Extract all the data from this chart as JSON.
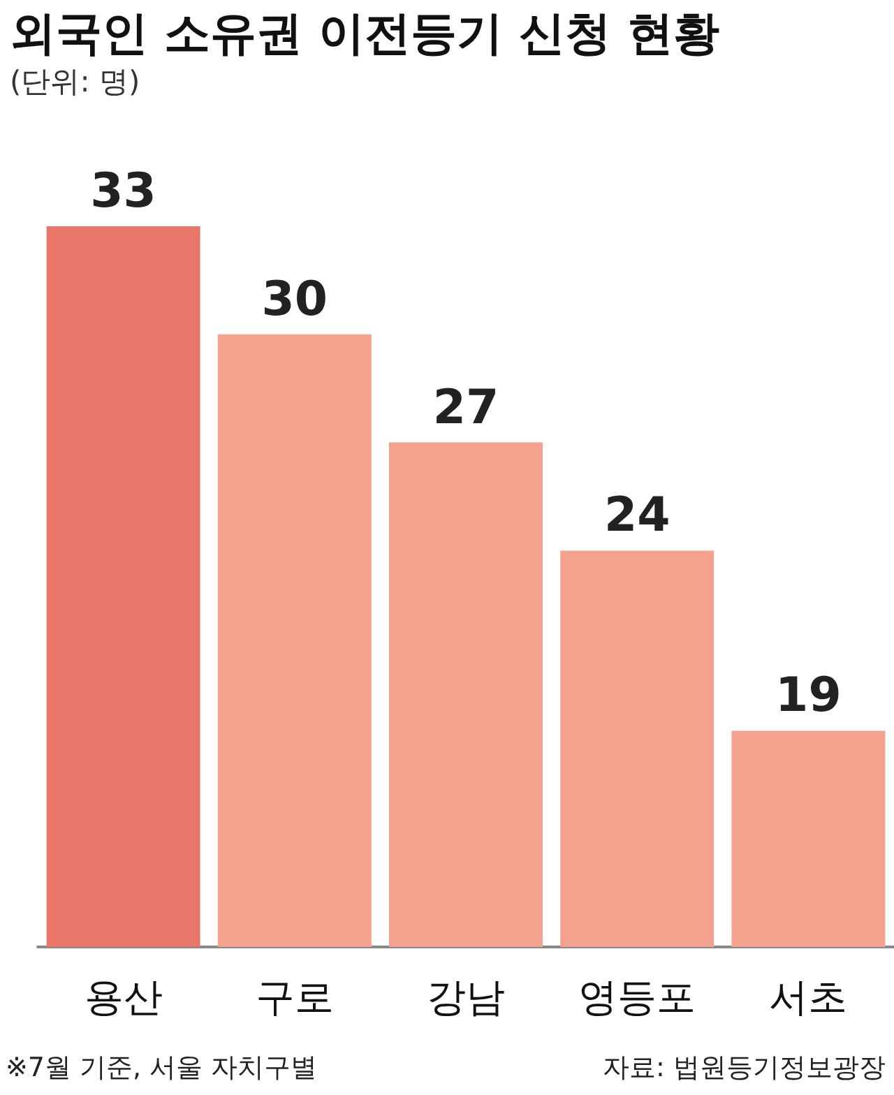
{
  "chart_data": {
    "type": "bar",
    "title": "외국인 소유권 이전등기 신청 현황",
    "subtitle": "(단위: 명)",
    "categories": [
      "용산",
      "구로",
      "강남",
      "영등포",
      "서초"
    ],
    "values": [
      33,
      30,
      27,
      24,
      19
    ],
    "colors": [
      "#e8776a",
      "#f4a28d",
      "#f4a28d",
      "#f4a28d",
      "#f4a28d"
    ],
    "ylim": [
      13,
      33
    ],
    "tick_labels": "x",
    "data_labels": true,
    "annotations": [
      "※7월 기준, 서울 자치구별",
      "자료: 법원등기정보광장"
    ]
  }
}
